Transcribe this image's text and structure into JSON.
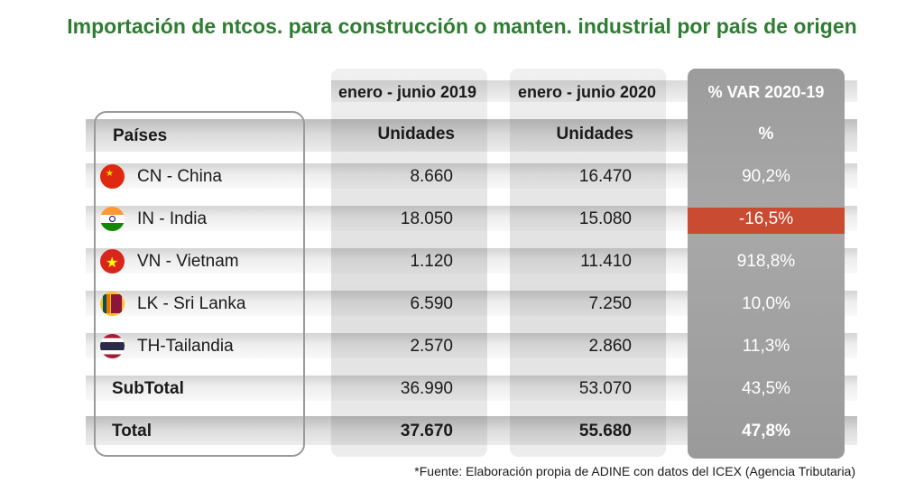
{
  "title": "Importación de ntcos. para construcción o manten. industrial por país de origen",
  "source": "*Fuente: Elaboración propia de ADINE con datos del ICEX (Agencia Tributaria)",
  "headers": {
    "period_2019": "enero - junio 2019",
    "period_2020": "enero - junio 2020",
    "var": "% VAR 2020-19",
    "paises": "Países",
    "unidades_2019": "Unidades",
    "unidades_2020": "Unidades",
    "pct": "%"
  },
  "colors": {
    "title": "#2e7d32",
    "negative": "#c84b32",
    "var_column": "#a0a0a0"
  },
  "chart_data": {
    "type": "table",
    "title": "Importación de ntcos. para construcción o manten. industrial por país de origen",
    "columns": [
      "Países",
      "enero - junio 2019 (Unidades)",
      "enero - junio 2020 (Unidades)",
      "% VAR 2020-19 (%)"
    ],
    "rows": [
      {
        "country": "CN - China",
        "flag": "china-flag-icon",
        "v2019": "8.660",
        "v2020": "16.470",
        "var": "90,2%"
      },
      {
        "country": "IN - India",
        "flag": "india-flag-icon",
        "v2019": "18.050",
        "v2020": "15.080",
        "var": "-16,5%"
      },
      {
        "country": "VN - Vietnam",
        "flag": "vietnam-flag-icon",
        "v2019": "1.120",
        "v2020": "11.410",
        "var": "918,8%"
      },
      {
        "country": "LK - Sri Lanka",
        "flag": "sri-lanka-flag-icon",
        "v2019": "6.590",
        "v2020": "7.250",
        "var": "10,0%"
      },
      {
        "country": "TH-Tailandia",
        "flag": "thailand-flag-icon",
        "v2019": "2.570",
        "v2020": "2.860",
        "var": "11,3%"
      }
    ],
    "subtotal": {
      "label": "SubTotal",
      "v2019": "36.990",
      "v2020": "53.070",
      "var": "43,5%"
    },
    "total": {
      "label": "Total",
      "v2019": "37.670",
      "v2020": "55.680",
      "var": "47,8%"
    }
  }
}
